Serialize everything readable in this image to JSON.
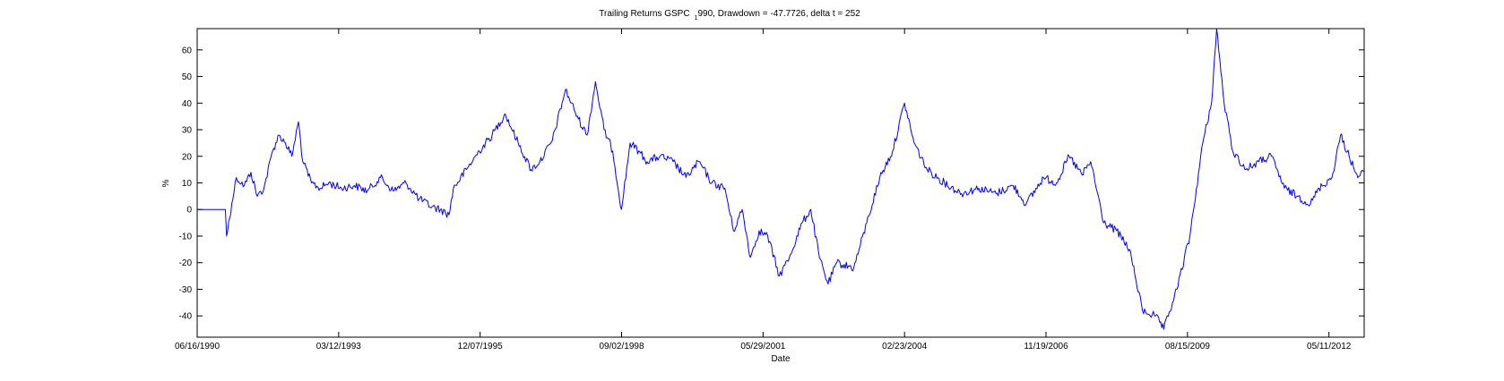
{
  "chart_data": {
    "type": "line",
    "title": "Trailing Returns GSPC  1990, Drawdown = -47.7726, delta t = 252",
    "title_parts": {
      "main": "Trailing Returns GSPC",
      "subscript": "1",
      "after_subscript": "990, Drawdown = -47.7726, delta t = 252"
    },
    "xlabel": "Date",
    "ylabel": "%",
    "ylim": [
      -48,
      68
    ],
    "yticks": [
      -40,
      -30,
      -20,
      -10,
      0,
      10,
      20,
      30,
      40,
      50,
      60
    ],
    "xlim": [
      "1990-06-16",
      "2013-01-15"
    ],
    "xticks": [
      {
        "date": "1990-06-16",
        "label": "06/16/1990"
      },
      {
        "date": "1993-03-12",
        "label": "03/12/1993"
      },
      {
        "date": "1995-12-07",
        "label": "12/07/1995"
      },
      {
        "date": "1998-09-02",
        "label": "09/02/1998"
      },
      {
        "date": "2001-05-29",
        "label": "05/29/2001"
      },
      {
        "date": "2004-02-23",
        "label": "02/23/2004"
      },
      {
        "date": "2006-11-19",
        "label": "11/19/2006"
      },
      {
        "date": "2009-08-15",
        "label": "08/15/2009"
      },
      {
        "date": "2012-05-11",
        "label": "05/11/2012"
      }
    ],
    "grid": false,
    "line_color": "#0000ff",
    "series": [
      {
        "points": [
          [
            "1990-06-16",
            0
          ],
          [
            "1991-01-01",
            0
          ],
          [
            "1991-01-10",
            -10
          ],
          [
            "1991-02-15",
            2
          ],
          [
            "1991-03-20",
            12
          ],
          [
            "1991-05-15",
            9
          ],
          [
            "1991-07-01",
            14
          ],
          [
            "1991-08-15",
            5
          ],
          [
            "1991-10-01",
            8
          ],
          [
            "1991-12-01",
            22
          ],
          [
            "1992-01-15",
            28
          ],
          [
            "1992-03-01",
            25
          ],
          [
            "1992-04-15",
            20
          ],
          [
            "1992-06-01",
            33
          ],
          [
            "1992-07-01",
            18
          ],
          [
            "1992-09-01",
            10
          ],
          [
            "1992-11-01",
            8
          ],
          [
            "1993-01-01",
            10
          ],
          [
            "1993-04-01",
            8
          ],
          [
            "1993-07-01",
            9
          ],
          [
            "1993-10-01",
            7
          ],
          [
            "1994-01-01",
            12
          ],
          [
            "1994-04-01",
            7
          ],
          [
            "1994-07-01",
            10
          ],
          [
            "1994-10-01",
            4
          ],
          [
            "1995-01-01",
            1
          ],
          [
            "1995-03-01",
            0
          ],
          [
            "1995-05-01",
            -2
          ],
          [
            "1995-06-01",
            8
          ],
          [
            "1995-09-01",
            15
          ],
          [
            "1995-12-01",
            22
          ],
          [
            "1996-03-01",
            28
          ],
          [
            "1996-06-01",
            36
          ],
          [
            "1996-09-01",
            25
          ],
          [
            "1996-12-01",
            15
          ],
          [
            "1997-02-01",
            18
          ],
          [
            "1997-05-01",
            26
          ],
          [
            "1997-08-01",
            45
          ],
          [
            "1997-11-01",
            34
          ],
          [
            "1998-01-01",
            28
          ],
          [
            "1998-03-01",
            48
          ],
          [
            "1998-05-01",
            30
          ],
          [
            "1998-07-01",
            22
          ],
          [
            "1998-09-01",
            0
          ],
          [
            "1998-11-01",
            25
          ],
          [
            "1999-01-01",
            22
          ],
          [
            "1999-03-01",
            18
          ],
          [
            "1999-06-01",
            20
          ],
          [
            "1999-09-01",
            18
          ],
          [
            "1999-12-01",
            12
          ],
          [
            "2000-03-01",
            18
          ],
          [
            "2000-06-01",
            10
          ],
          [
            "2000-09-01",
            8
          ],
          [
            "2000-11-01",
            -8
          ],
          [
            "2001-01-01",
            0
          ],
          [
            "2001-03-01",
            -18
          ],
          [
            "2001-05-01",
            -8
          ],
          [
            "2001-07-01",
            -10
          ],
          [
            "2001-09-20",
            -25
          ],
          [
            "2001-12-01",
            -18
          ],
          [
            "2002-03-01",
            -5
          ],
          [
            "2002-05-01",
            0
          ],
          [
            "2002-07-01",
            -18
          ],
          [
            "2002-09-01",
            -28
          ],
          [
            "2002-11-01",
            -20
          ],
          [
            "2003-03-01",
            -22
          ],
          [
            "2003-06-01",
            -5
          ],
          [
            "2003-09-01",
            12
          ],
          [
            "2003-12-01",
            22
          ],
          [
            "2004-02-23",
            40
          ],
          [
            "2004-05-01",
            25
          ],
          [
            "2004-08-01",
            15
          ],
          [
            "2004-12-01",
            10
          ],
          [
            "2005-04-01",
            6
          ],
          [
            "2005-08-01",
            8
          ],
          [
            "2005-12-01",
            6
          ],
          [
            "2006-04-01",
            9
          ],
          [
            "2006-07-01",
            2
          ],
          [
            "2006-11-01",
            12
          ],
          [
            "2007-02-01",
            10
          ],
          [
            "2007-05-01",
            20
          ],
          [
            "2007-08-01",
            13
          ],
          [
            "2007-10-01",
            18
          ],
          [
            "2008-01-01",
            -5
          ],
          [
            "2008-04-01",
            -8
          ],
          [
            "2008-07-01",
            -15
          ],
          [
            "2008-10-01",
            -38
          ],
          [
            "2009-01-01",
            -40
          ],
          [
            "2009-03-01",
            -45
          ],
          [
            "2009-06-01",
            -30
          ],
          [
            "2009-09-01",
            -10
          ],
          [
            "2009-12-01",
            25
          ],
          [
            "2010-02-01",
            40
          ],
          [
            "2010-03-09",
            68
          ],
          [
            "2010-05-01",
            40
          ],
          [
            "2010-07-01",
            22
          ],
          [
            "2010-10-01",
            15
          ],
          [
            "2011-01-01",
            18
          ],
          [
            "2011-04-01",
            20
          ],
          [
            "2011-07-01",
            8
          ],
          [
            "2011-10-01",
            5
          ],
          [
            "2012-01-01",
            2
          ],
          [
            "2012-03-01",
            8
          ],
          [
            "2012-06-01",
            12
          ],
          [
            "2012-08-01",
            28
          ],
          [
            "2012-10-01",
            20
          ],
          [
            "2012-12-01",
            12
          ],
          [
            "2013-01-15",
            14
          ]
        ]
      }
    ]
  }
}
